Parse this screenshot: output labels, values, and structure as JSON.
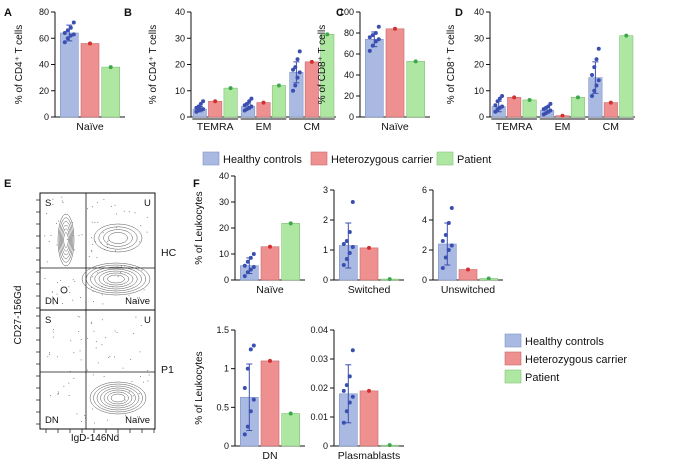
{
  "colors": {
    "healthy_fill": "#a9b9e2",
    "healthy_dot": "#3a4fb0",
    "carrier_fill": "#ee8f90",
    "carrier_dot": "#d32f2f",
    "patient_fill": "#aee7a2",
    "patient_dot": "#3da84a",
    "axis": "#111111"
  },
  "legend_top": {
    "entries": [
      "Healthy controls",
      "Heterozygous carrier",
      "Patient"
    ]
  },
  "legend_bottom": {
    "entries": [
      "Healthy controls",
      "Heterozygous carrier",
      "Patient"
    ]
  },
  "flow": {
    "letter": "E",
    "ylabel": "CD27-156Gd",
    "xlabel": "IgD-146Nd",
    "top_plot": {
      "sample_label": "HC",
      "gates": {
        "top_left": "S",
        "top_right": "U",
        "bottom_left": "DN",
        "bottom_right": "Naïve"
      }
    },
    "bottom_plot": {
      "sample_label": "P1",
      "gates": {
        "top_left": "S",
        "top_right": "U",
        "bottom_left": "DN",
        "bottom_right": "Naïve"
      }
    }
  },
  "chart_data": [
    {
      "panel": "A",
      "type": "bar",
      "ylabel": "% of CD4⁺ T cells",
      "ylim": [
        0,
        80
      ],
      "yticks": [
        0,
        20,
        40,
        60,
        80
      ],
      "groups": [
        "Naïve"
      ],
      "series": [
        {
          "name": "Healthy controls",
          "values": [
            64
          ],
          "error": [
            6
          ],
          "points": [
            [
              57,
              60,
              62,
              63,
              64,
              66,
              68,
              72
            ]
          ]
        },
        {
          "name": "Heterozygous carrier",
          "values": [
            56
          ],
          "points": [
            [
              56
            ]
          ]
        },
        {
          "name": "Patient",
          "values": [
            38
          ],
          "points": [
            [
              38
            ]
          ]
        }
      ]
    },
    {
      "panel": "B",
      "type": "bar",
      "ylabel": "% of CD4⁺ T cells",
      "ylim": [
        0,
        40
      ],
      "yticks": [
        0,
        10,
        20,
        30,
        40
      ],
      "groups": [
        "TEMRA",
        "EM",
        "CM"
      ],
      "series": [
        {
          "name": "Healthy controls",
          "values": [
            3,
            4,
            17
          ],
          "error": [
            1,
            1,
            4
          ],
          "points": [
            [
              2,
              2.5,
              3,
              3,
              3.5,
              4,
              5,
              6
            ],
            [
              2.5,
              3,
              3.5,
              4,
              4.5,
              5,
              6,
              7
            ],
            [
              10,
              12,
              15,
              17,
              18,
              19,
              22,
              25
            ]
          ]
        },
        {
          "name": "Heterozygous carrier",
          "values": [
            6,
            5.5,
            21
          ],
          "points": [
            [
              6
            ],
            [
              5.5
            ],
            [
              21
            ]
          ]
        },
        {
          "name": "Patient",
          "values": [
            11,
            12,
            31.5
          ],
          "points": [
            [
              11
            ],
            [
              12
            ],
            [
              31.5
            ]
          ]
        }
      ]
    },
    {
      "panel": "C",
      "type": "bar",
      "ylabel": "% of CD8⁺ T cells",
      "ylim": [
        0,
        100
      ],
      "yticks": [
        0,
        20,
        40,
        60,
        80,
        100
      ],
      "groups": [
        "Naïve"
      ],
      "series": [
        {
          "name": "Healthy controls",
          "values": [
            74
          ],
          "error": [
            7
          ],
          "points": [
            [
              63,
              68,
              72,
              74,
              76,
              78,
              80,
              86
            ]
          ]
        },
        {
          "name": "Heterozygous carrier",
          "values": [
            84
          ],
          "points": [
            [
              84
            ]
          ]
        },
        {
          "name": "Patient",
          "values": [
            53
          ],
          "points": [
            [
              53
            ]
          ]
        }
      ]
    },
    {
      "panel": "D",
      "type": "bar",
      "ylabel": "% of CD8⁺ T cells",
      "ylim": [
        0,
        40
      ],
      "yticks": [
        0,
        10,
        20,
        30,
        40
      ],
      "groups": [
        "TEMRA",
        "EM",
        "CM"
      ],
      "series": [
        {
          "name": "Healthy controls",
          "values": [
            4,
            2.5,
            15
          ],
          "error": [
            2,
            1,
            6
          ],
          "points": [
            [
              2,
              3,
              3.5,
              4,
              4.5,
              6,
              7,
              8
            ],
            [
              1,
              1.5,
              2,
              2.5,
              3,
              3.5,
              4,
              5
            ],
            [
              8,
              10,
              12,
              14,
              16,
              19,
              22,
              26
            ]
          ]
        },
        {
          "name": "Heterozygous carrier",
          "values": [
            7.5,
            0.5,
            5.5
          ],
          "points": [
            [
              7.5
            ],
            [
              0.5
            ],
            [
              5.5
            ]
          ]
        },
        {
          "name": "Patient",
          "values": [
            6.5,
            7.5,
            31
          ],
          "points": [
            [
              6.5
            ],
            [
              7.5
            ],
            [
              31
            ]
          ]
        }
      ]
    },
    {
      "panel": "F",
      "type": "bar",
      "ylabel": "% of Leukocytes",
      "ylim": [
        0,
        40
      ],
      "yticks": [
        0,
        10,
        20,
        30,
        40
      ],
      "groups": [
        "Naïve"
      ],
      "series": [
        {
          "name": "Healthy controls",
          "values": [
            5.5
          ],
          "error": [
            3
          ],
          "points": [
            [
              1.5,
              3,
              4,
              5,
              5.5,
              7,
              8.5,
              10
            ]
          ]
        },
        {
          "name": "Heterozygous carrier",
          "values": [
            12.8
          ],
          "points": [
            [
              12.8
            ]
          ]
        },
        {
          "name": "Patient",
          "values": [
            21.8
          ],
          "points": [
            [
              21.8
            ]
          ]
        }
      ]
    },
    {
      "panel": "F",
      "type": "bar",
      "ylabel": "",
      "ylim": [
        0,
        3
      ],
      "yticks": [
        0,
        1,
        2,
        3
      ],
      "groups": [
        "Switched"
      ],
      "series": [
        {
          "name": "Healthy controls",
          "values": [
            1.15
          ],
          "error": [
            0.75
          ],
          "points": [
            [
              0.5,
              0.7,
              0.9,
              1.1,
              1.2,
              1.3,
              1.6,
              2.6
            ]
          ]
        },
        {
          "name": "Heterozygous carrier",
          "values": [
            1.07
          ],
          "points": [
            [
              1.07
            ]
          ]
        },
        {
          "name": "Patient",
          "values": [
            0.03
          ],
          "points": [
            [
              0.03
            ]
          ]
        }
      ]
    },
    {
      "panel": "F",
      "type": "bar",
      "ylabel": "",
      "ylim": [
        0,
        6
      ],
      "yticks": [
        0,
        2,
        4,
        6
      ],
      "groups": [
        "Unswitched"
      ],
      "series": [
        {
          "name": "Healthy controls",
          "values": [
            2.4
          ],
          "error": [
            1.4
          ],
          "points": [
            [
              0.8,
              1.5,
              2.0,
              2.3,
              2.6,
              3.0,
              3.8,
              4.8
            ]
          ]
        },
        {
          "name": "Heterozygous carrier",
          "values": [
            0.7
          ],
          "points": [
            [
              0.7
            ]
          ]
        },
        {
          "name": "Patient",
          "values": [
            0.1
          ],
          "points": [
            [
              0.1
            ]
          ]
        }
      ]
    },
    {
      "panel": "F",
      "type": "bar",
      "ylabel": "% of Leukocytes",
      "ylim": [
        0,
        1.5
      ],
      "yticks": [
        0,
        0.5,
        1,
        1.5
      ],
      "groups": [
        "DN"
      ],
      "series": [
        {
          "name": "Healthy controls",
          "values": [
            0.63
          ],
          "error": [
            0.43
          ],
          "points": [
            [
              0.15,
              0.25,
              0.45,
              0.6,
              0.75,
              1.0,
              1.25,
              1.3
            ]
          ]
        },
        {
          "name": "Heterozygous carrier",
          "values": [
            1.1
          ],
          "points": [
            [
              1.1
            ]
          ]
        },
        {
          "name": "Patient",
          "values": [
            0.42
          ],
          "points": [
            [
              0.42
            ]
          ]
        }
      ]
    },
    {
      "panel": "F",
      "type": "bar",
      "ylabel": "",
      "ylim": [
        0,
        0.04
      ],
      "yticks": [
        0,
        0.01,
        0.02,
        0.03,
        0.04
      ],
      "groups": [
        "Plasmablasts"
      ],
      "series": [
        {
          "name": "Healthy controls",
          "values": [
            0.018
          ],
          "error": [
            0.01
          ],
          "points": [
            [
              0.008,
              0.012,
              0.015,
              0.017,
              0.019,
              0.021,
              0.024,
              0.033
            ]
          ]
        },
        {
          "name": "Heterozygous carrier",
          "values": [
            0.019
          ],
          "points": [
            [
              0.019
            ]
          ]
        },
        {
          "name": "Patient",
          "values": [
            0.0003
          ],
          "points": [
            [
              0.0003
            ]
          ]
        }
      ]
    }
  ]
}
